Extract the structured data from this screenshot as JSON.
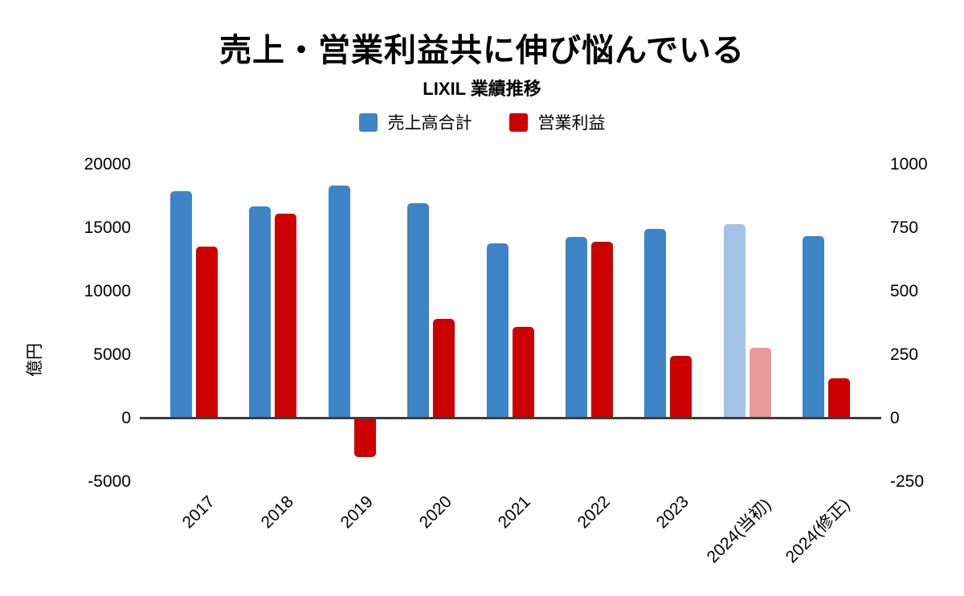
{
  "chart_data": {
    "type": "bar",
    "title": "売上・営業利益共に伸び悩んでいる",
    "subtitle": "LIXIL 業績推移",
    "categories": [
      "2017",
      "2018",
      "2019",
      "2020",
      "2021",
      "2022",
      "2023",
      "2024(当初)",
      "2024(修正)"
    ],
    "series": [
      {
        "name": "売上高合計",
        "axis": "left",
        "color": "#3d85c6",
        "muted_color": "#a4c2e8",
        "values": [
          17870,
          16650,
          18290,
          16890,
          13720,
          14230,
          14880,
          15250,
          14300
        ]
      },
      {
        "name": "営業利益",
        "axis": "right",
        "color": "#cc0000",
        "muted_color": "#ea9999",
        "values": [
          675,
          805,
          -150,
          388,
          357,
          692,
          245,
          275,
          155
        ]
      }
    ],
    "muted_category_indexes": [
      7
    ],
    "left_axis": {
      "label": "億円",
      "ticks": [
        20000,
        15000,
        10000,
        5000,
        0,
        -5000
      ],
      "min": -5000,
      "max": 20000
    },
    "right_axis": {
      "label": "",
      "ticks": [
        1000,
        750,
        500,
        250,
        0,
        -250
      ],
      "min": -250,
      "max": 1000
    },
    "legend_position": "top",
    "grid": "off"
  }
}
